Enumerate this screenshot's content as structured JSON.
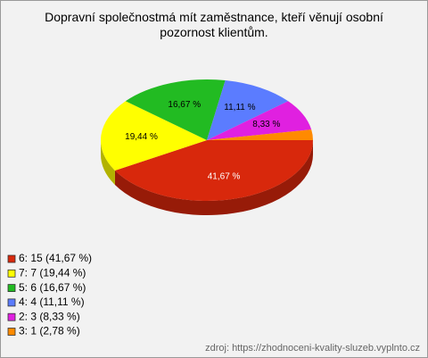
{
  "chart_data": {
    "type": "pie",
    "title": "Dopravní společnostmá mít zaměstnance, kteří věnují osobní pozornost klientům.",
    "categories": [
      "6",
      "7",
      "5",
      "4",
      "2",
      "3"
    ],
    "values": [
      41.67,
      19.44,
      16.67,
      11.11,
      8.33,
      2.78
    ],
    "value_labels": [
      "41,67 %",
      "19,44 %",
      "16,67 %",
      "11,11 %",
      "8,33 %",
      "2,78 %"
    ],
    "legend": [
      "6: 15 (41,67 %)",
      "7: 7 (19,44 %)",
      "5: 6 (16,67 %)",
      "4: 4 (11,11 %)",
      "2: 3 (8,33 %)",
      "3: 1 (2,78 %)"
    ],
    "colors": [
      "#d8280c",
      "#ffff00",
      "#22bb22",
      "#5b7cff",
      "#e020e0",
      "#ff8a00"
    ],
    "source": "zdroj: https://zhodnoceni-kvality-sluzeb.vyplnto.cz"
  }
}
